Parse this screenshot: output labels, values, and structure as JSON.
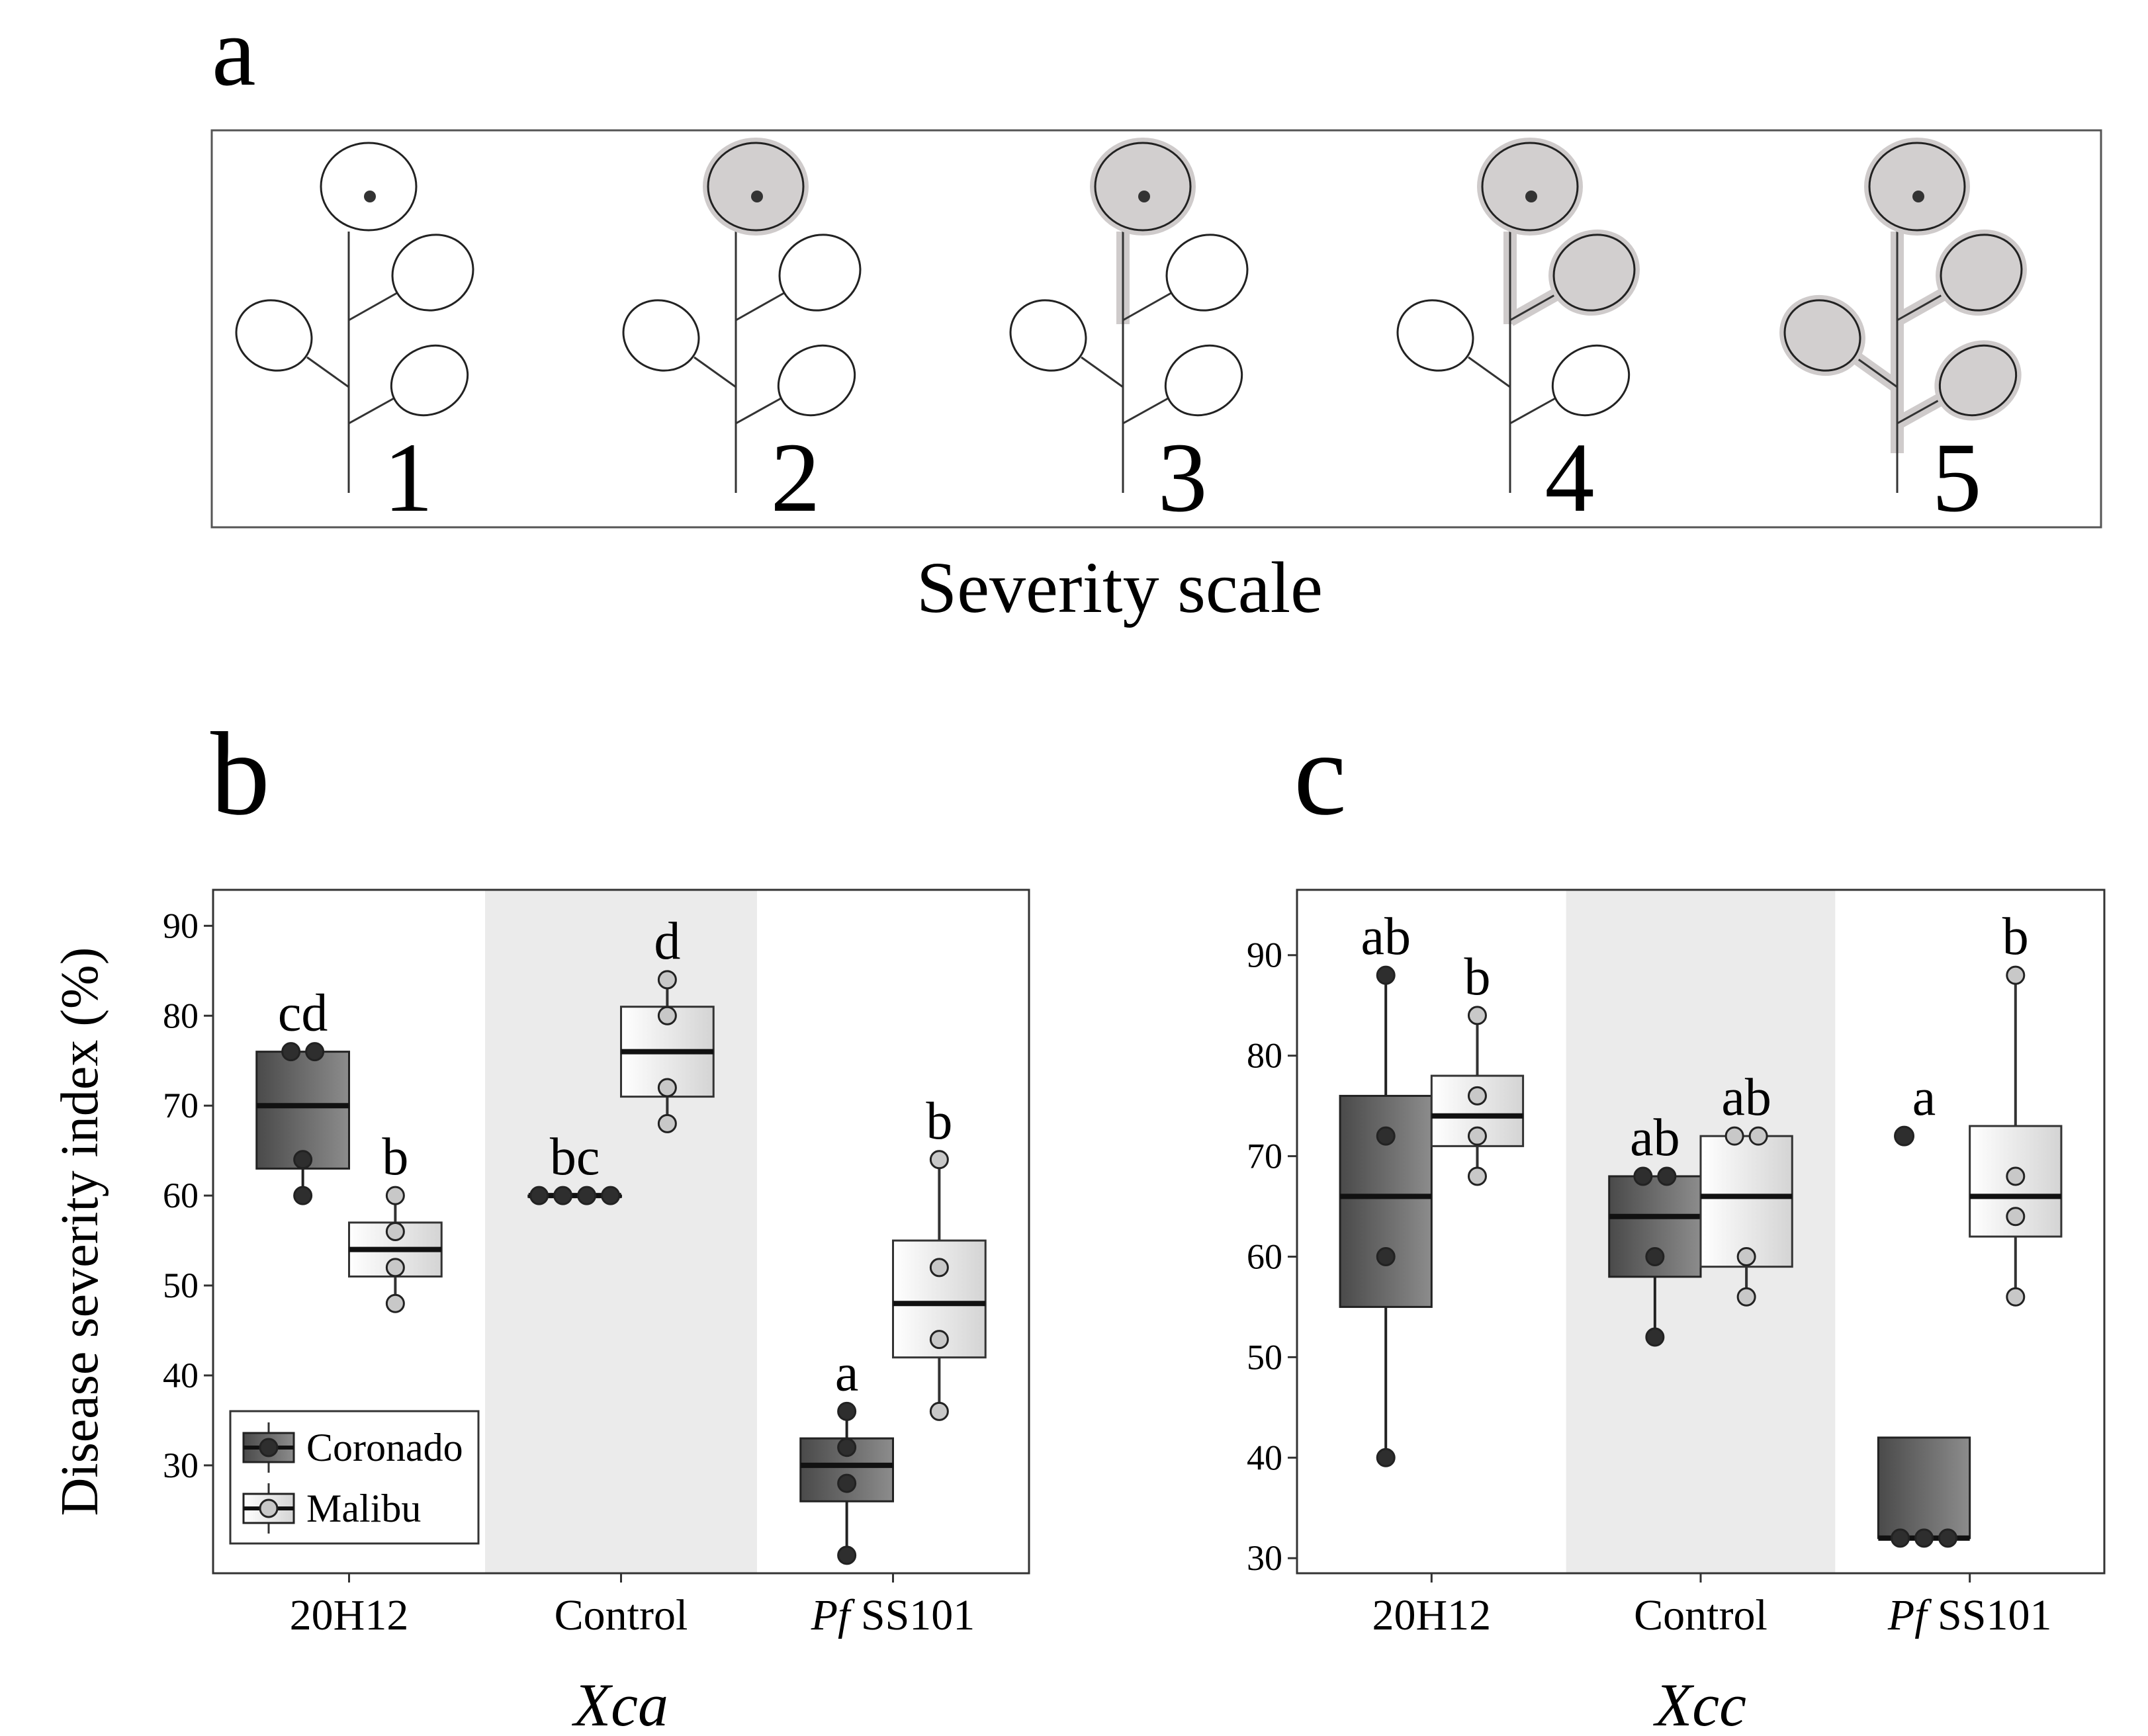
{
  "panel_labels": {
    "a": "a",
    "b": "b",
    "c": "c"
  },
  "severity_scale": {
    "title": "Severity scale",
    "levels": [
      "1",
      "2",
      "3",
      "4",
      "5"
    ]
  },
  "colors": {
    "healthy_leaf": "#ffffff",
    "diseased_leaf": "#d2cfcf",
    "diseased_stem": "#cfcbcb",
    "coronado_fill_dark": "#4a4a4a",
    "coronado_fill_light": "#8c8c8c",
    "malibu_fill_light": "#ffffff",
    "malibu_fill_dark": "#d4d4d4",
    "coronado_point": "#2e2e2e",
    "malibu_point": "#c8c8c8",
    "control_band": "#ebebeb"
  },
  "chart_data": [
    {
      "type": "box",
      "panel": "b",
      "title": "",
      "xlabel": "Xca",
      "ylabel": "Disease severity index (%)",
      "ylim": [
        18,
        94
      ],
      "yticks": [
        30,
        40,
        50,
        60,
        70,
        80,
        90
      ],
      "grid": false,
      "legend_position": "bottom-left",
      "categories": [
        "20H12",
        "Control",
        "Pf SS101"
      ],
      "category_labels": [
        {
          "italic": "",
          "text": "20H12"
        },
        {
          "italic": "",
          "text": "Control"
        },
        {
          "italic": "Pf",
          "text": " SS101"
        }
      ],
      "shaded_category": "Control",
      "series": [
        {
          "name": "Coronado",
          "boxes": [
            {
              "q1": 63,
              "median": 70,
              "q3": 76,
              "whisker_low": 60,
              "whisker_high": 76,
              "points": [
                76,
                76,
                64,
                60
              ],
              "letter": "cd"
            },
            {
              "q1": 60,
              "median": 60,
              "q3": 60,
              "whisker_low": 60,
              "whisker_high": 60,
              "points": [
                60,
                60,
                60,
                60
              ],
              "letter": "bc"
            },
            {
              "q1": 26,
              "median": 30,
              "q3": 33,
              "whisker_low": 20,
              "whisker_high": 36,
              "points": [
                36,
                32,
                28,
                20
              ],
              "letter": "a"
            }
          ]
        },
        {
          "name": "Malibu",
          "boxes": [
            {
              "q1": 51,
              "median": 54,
              "q3": 57,
              "whisker_low": 48,
              "whisker_high": 60,
              "points": [
                60,
                56,
                52,
                48
              ],
              "letter": "b"
            },
            {
              "q1": 71,
              "median": 76,
              "q3": 81,
              "whisker_low": 68,
              "whisker_high": 84,
              "points": [
                84,
                80,
                72,
                68
              ],
              "letter": "d"
            },
            {
              "q1": 42,
              "median": 48,
              "q3": 55,
              "whisker_low": 36,
              "whisker_high": 64,
              "points": [
                64,
                52,
                44,
                36
              ],
              "letter": "b"
            }
          ]
        }
      ]
    },
    {
      "type": "box",
      "panel": "c",
      "title": "",
      "xlabel": "Xcc",
      "ylabel": "",
      "ylim": [
        28.5,
        96.5
      ],
      "yticks": [
        30,
        40,
        50,
        60,
        70,
        80,
        90
      ],
      "grid": false,
      "legend_position": "none",
      "categories": [
        "20H12",
        "Control",
        "Pf SS101"
      ],
      "category_labels": [
        {
          "italic": "",
          "text": "20H12"
        },
        {
          "italic": "",
          "text": "Control"
        },
        {
          "italic": "Pf",
          "text": " SS101"
        }
      ],
      "shaded_category": "Control",
      "series": [
        {
          "name": "Coronado",
          "boxes": [
            {
              "q1": 55,
              "median": 66,
              "q3": 76,
              "whisker_low": 40,
              "whisker_high": 88,
              "points": [
                88,
                72,
                60,
                40
              ],
              "letter": "ab"
            },
            {
              "q1": 58,
              "median": 64,
              "q3": 68,
              "whisker_low": 52,
              "whisker_high": 68,
              "points": [
                68,
                68,
                60,
                52
              ],
              "letter": "ab"
            },
            {
              "q1": 32,
              "median": 32,
              "q3": 42,
              "whisker_low": 32,
              "whisker_high": 42,
              "points": [
                32,
                32,
                32
              ],
              "outliers": [
                72
              ],
              "letter": "a"
            }
          ]
        },
        {
          "name": "Malibu",
          "boxes": [
            {
              "q1": 71,
              "median": 74,
              "q3": 78,
              "whisker_low": 68,
              "whisker_high": 84,
              "points": [
                84,
                76,
                72,
                68
              ],
              "letter": "b"
            },
            {
              "q1": 59,
              "median": 66,
              "q3": 72,
              "whisker_low": 56,
              "whisker_high": 72,
              "points": [
                72,
                72,
                60,
                56
              ],
              "letter": "ab"
            },
            {
              "q1": 62,
              "median": 66,
              "q3": 73,
              "whisker_low": 56,
              "whisker_high": 88,
              "points": [
                88,
                68,
                64,
                56
              ],
              "letter": "b"
            }
          ]
        }
      ]
    }
  ]
}
